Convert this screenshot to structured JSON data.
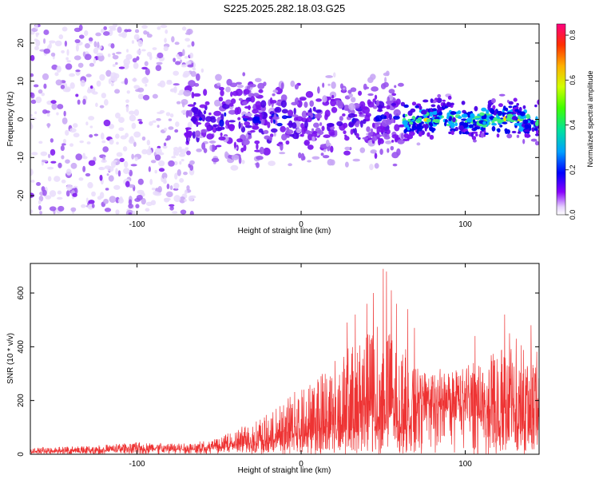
{
  "figure": {
    "title": "S225.2025.282.18.03.G25"
  },
  "chart_data": [
    {
      "type": "heatmap",
      "name": "spectrogram",
      "xlabel": "Height of straight line (km)",
      "ylabel": "Frequency (Hz)",
      "xlim": [
        -165,
        145
      ],
      "ylim": [
        -25,
        25
      ],
      "xticks": [
        -100,
        0,
        100
      ],
      "yticks": [
        -20,
        -10,
        0,
        10,
        20
      ],
      "colorbar": {
        "label": "Normalized spectral amplitude",
        "range": [
          0,
          0.85
        ],
        "ticks": [
          0,
          0.2,
          0.4,
          0.6,
          0.8
        ]
      },
      "description_regions": [
        {
          "x_range": [
            -165,
            -70
          ],
          "freq_range": [
            -25,
            25
          ],
          "amplitude": "low, scattered (about 0.0-0.05)"
        },
        {
          "x_range": [
            -70,
            62
          ],
          "freq_range": [
            -15,
            15
          ],
          "amplitude": "moderate (about 0.05-0.15), blobs concentrated near 0 Hz"
        },
        {
          "x_range": [
            62,
            145
          ],
          "freq_range": [
            -5,
            5
          ],
          "amplitude": "high band at 0 Hz (about 0.2-0.4)"
        }
      ]
    },
    {
      "type": "line",
      "name": "snr",
      "xlabel": "Height of straight line (km)",
      "ylabel": "SNR (10 * v/v)",
      "xlim": [
        -165,
        145
      ],
      "ylim": [
        0,
        710
      ],
      "xticks": [
        -100,
        0,
        100
      ],
      "yticks": [
        0,
        200,
        400,
        600
      ],
      "color": "#ee3333",
      "envelope": [
        {
          "x": -165,
          "base": 8,
          "peak": 25
        },
        {
          "x": -130,
          "base": 10,
          "peak": 30
        },
        {
          "x": -100,
          "base": 15,
          "peak": 45
        },
        {
          "x": -70,
          "base": 15,
          "peak": 40
        },
        {
          "x": -50,
          "base": 20,
          "peak": 60
        },
        {
          "x": -35,
          "base": 30,
          "peak": 110
        },
        {
          "x": -20,
          "base": 40,
          "peak": 150
        },
        {
          "x": -5,
          "base": 60,
          "peak": 230
        },
        {
          "x": 10,
          "base": 70,
          "peak": 300
        },
        {
          "x": 25,
          "base": 80,
          "peak": 380
        },
        {
          "x": 40,
          "base": 80,
          "peak": 450
        },
        {
          "x": 50,
          "base": 90,
          "peak": 520
        },
        {
          "x": 58,
          "base": 90,
          "peak": 420
        },
        {
          "x": 68,
          "base": 80,
          "peak": 380
        },
        {
          "x": 72,
          "base": 180,
          "peak": 300
        },
        {
          "x": 85,
          "base": 170,
          "peak": 320
        },
        {
          "x": 100,
          "base": 150,
          "peak": 330
        },
        {
          "x": 115,
          "base": 110,
          "peak": 370
        },
        {
          "x": 130,
          "base": 80,
          "peak": 420
        },
        {
          "x": 145,
          "base": 90,
          "peak": 380
        }
      ],
      "peaks": [
        {
          "x": 28,
          "y": 490
        },
        {
          "x": 33,
          "y": 520
        },
        {
          "x": 40,
          "y": 560
        },
        {
          "x": 44,
          "y": 600
        },
        {
          "x": 50,
          "y": 690
        },
        {
          "x": 52,
          "y": 680
        },
        {
          "x": 55,
          "y": 610
        },
        {
          "x": 58,
          "y": 560
        },
        {
          "x": 65,
          "y": 540
        },
        {
          "x": 69,
          "y": 470
        },
        {
          "x": 106,
          "y": 440
        },
        {
          "x": 124,
          "y": 520
        },
        {
          "x": 127,
          "y": 450
        },
        {
          "x": 131,
          "y": 430
        },
        {
          "x": 140,
          "y": 480
        }
      ]
    }
  ]
}
